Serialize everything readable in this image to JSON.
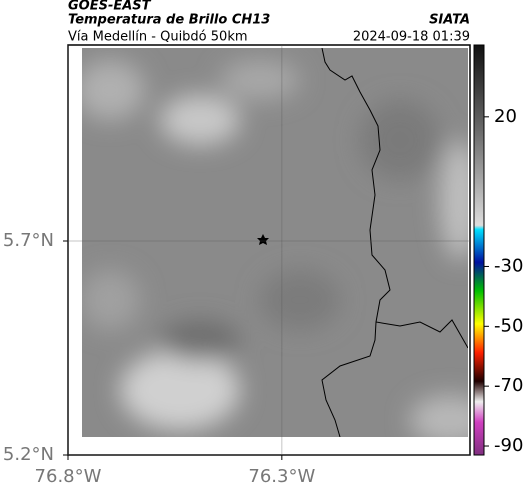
{
  "header": {
    "source": "GOES-EAST",
    "title": "Temperatura de Brillo CH13",
    "subtitle": "Vía Medellín - Quibdó 50km",
    "org": "SIATA",
    "datetime": "2024-09-18 01:39"
  },
  "map": {
    "lonlim": [
      -76.8,
      -75.86
    ],
    "latlim": [
      5.2,
      6.158
    ],
    "lat_ticks": [
      {
        "value": 5.7,
        "label": "5.7°N"
      },
      {
        "value": 5.2,
        "label": "5.2°N"
      }
    ],
    "lon_ticks": [
      {
        "value": -76.8,
        "label": "76.8°W"
      },
      {
        "value": -76.3,
        "label": "76.3°W"
      }
    ]
  },
  "colorbar": {
    "lim": [
      -93,
      44
    ],
    "ticks": [
      20,
      -30,
      -50,
      -70,
      -90
    ]
  }
}
